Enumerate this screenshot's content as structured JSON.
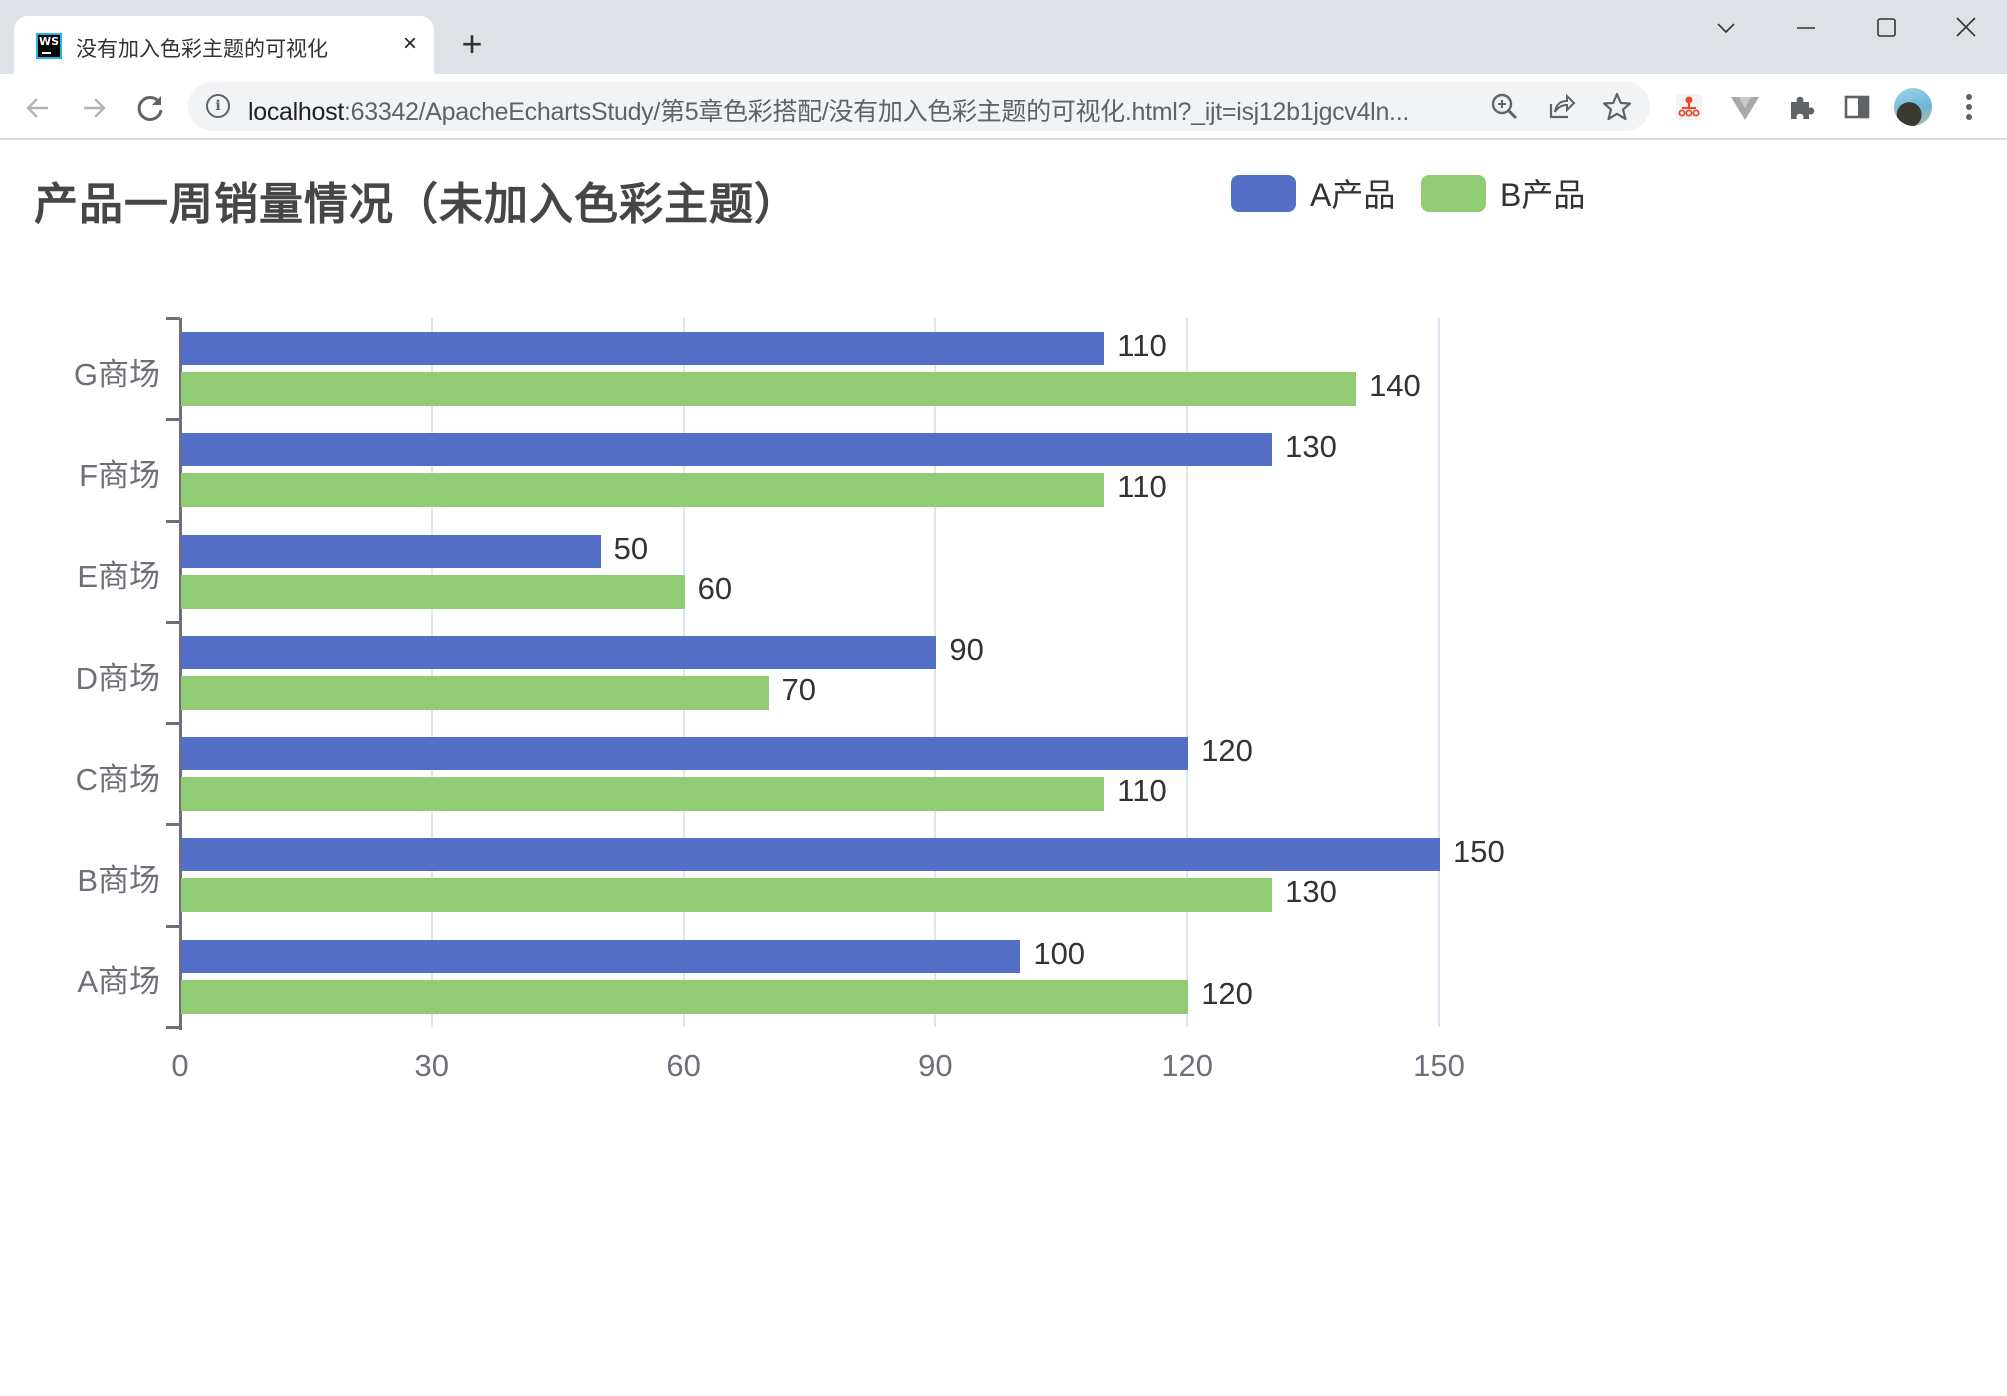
{
  "browser": {
    "tab": {
      "title": "没有加入色彩主题的可视化",
      "favicon": "WS",
      "close": "×"
    },
    "new_tab": "+",
    "window_controls": {
      "chevron": "⌄",
      "minimize": "—",
      "maximize": "☐",
      "close": "✕"
    },
    "nav": {
      "back": "←",
      "forward": "→",
      "reload": "↻"
    },
    "url": {
      "host": "localhost",
      "rest": ":63342/ApacheEchartsStudy/第5章色彩搭配/没有加入色彩主题的可视化.html?_ijt=isj12b1jgcv4ln..."
    },
    "omnibox_icons": [
      "zoom-icon",
      "share-icon",
      "bookmark-star-icon"
    ],
    "extensions": [
      "sitemap-extension-icon",
      "vue-devtools-icon",
      "extensions-puzzle-icon",
      "side-panel-icon"
    ]
  },
  "chart": {
    "title": "产品一周销量情况（未加入色彩主题）",
    "legend": [
      {
        "label": "A产品",
        "color": "#5470c6"
      },
      {
        "label": "B产品",
        "color": "#91cc75"
      }
    ]
  },
  "chart_data": {
    "type": "bar",
    "orientation": "horizontal",
    "title": "产品一周销量情况（未加入色彩主题）",
    "xlabel": "",
    "ylabel": "",
    "categories": [
      "A商场",
      "B商场",
      "C商场",
      "D商场",
      "E商场",
      "F商场",
      "G商场"
    ],
    "series": [
      {
        "name": "A产品",
        "color": "#5470c6",
        "values": [
          100,
          150,
          120,
          90,
          50,
          130,
          110
        ]
      },
      {
        "name": "B产品",
        "color": "#91cc75",
        "values": [
          120,
          130,
          110,
          70,
          60,
          110,
          140
        ]
      }
    ],
    "xlim": [
      0,
      150
    ],
    "x_ticks": [
      0,
      30,
      60,
      90,
      120,
      150
    ],
    "grid": "vertical",
    "legend_position": "top-right",
    "data_labels": true
  }
}
